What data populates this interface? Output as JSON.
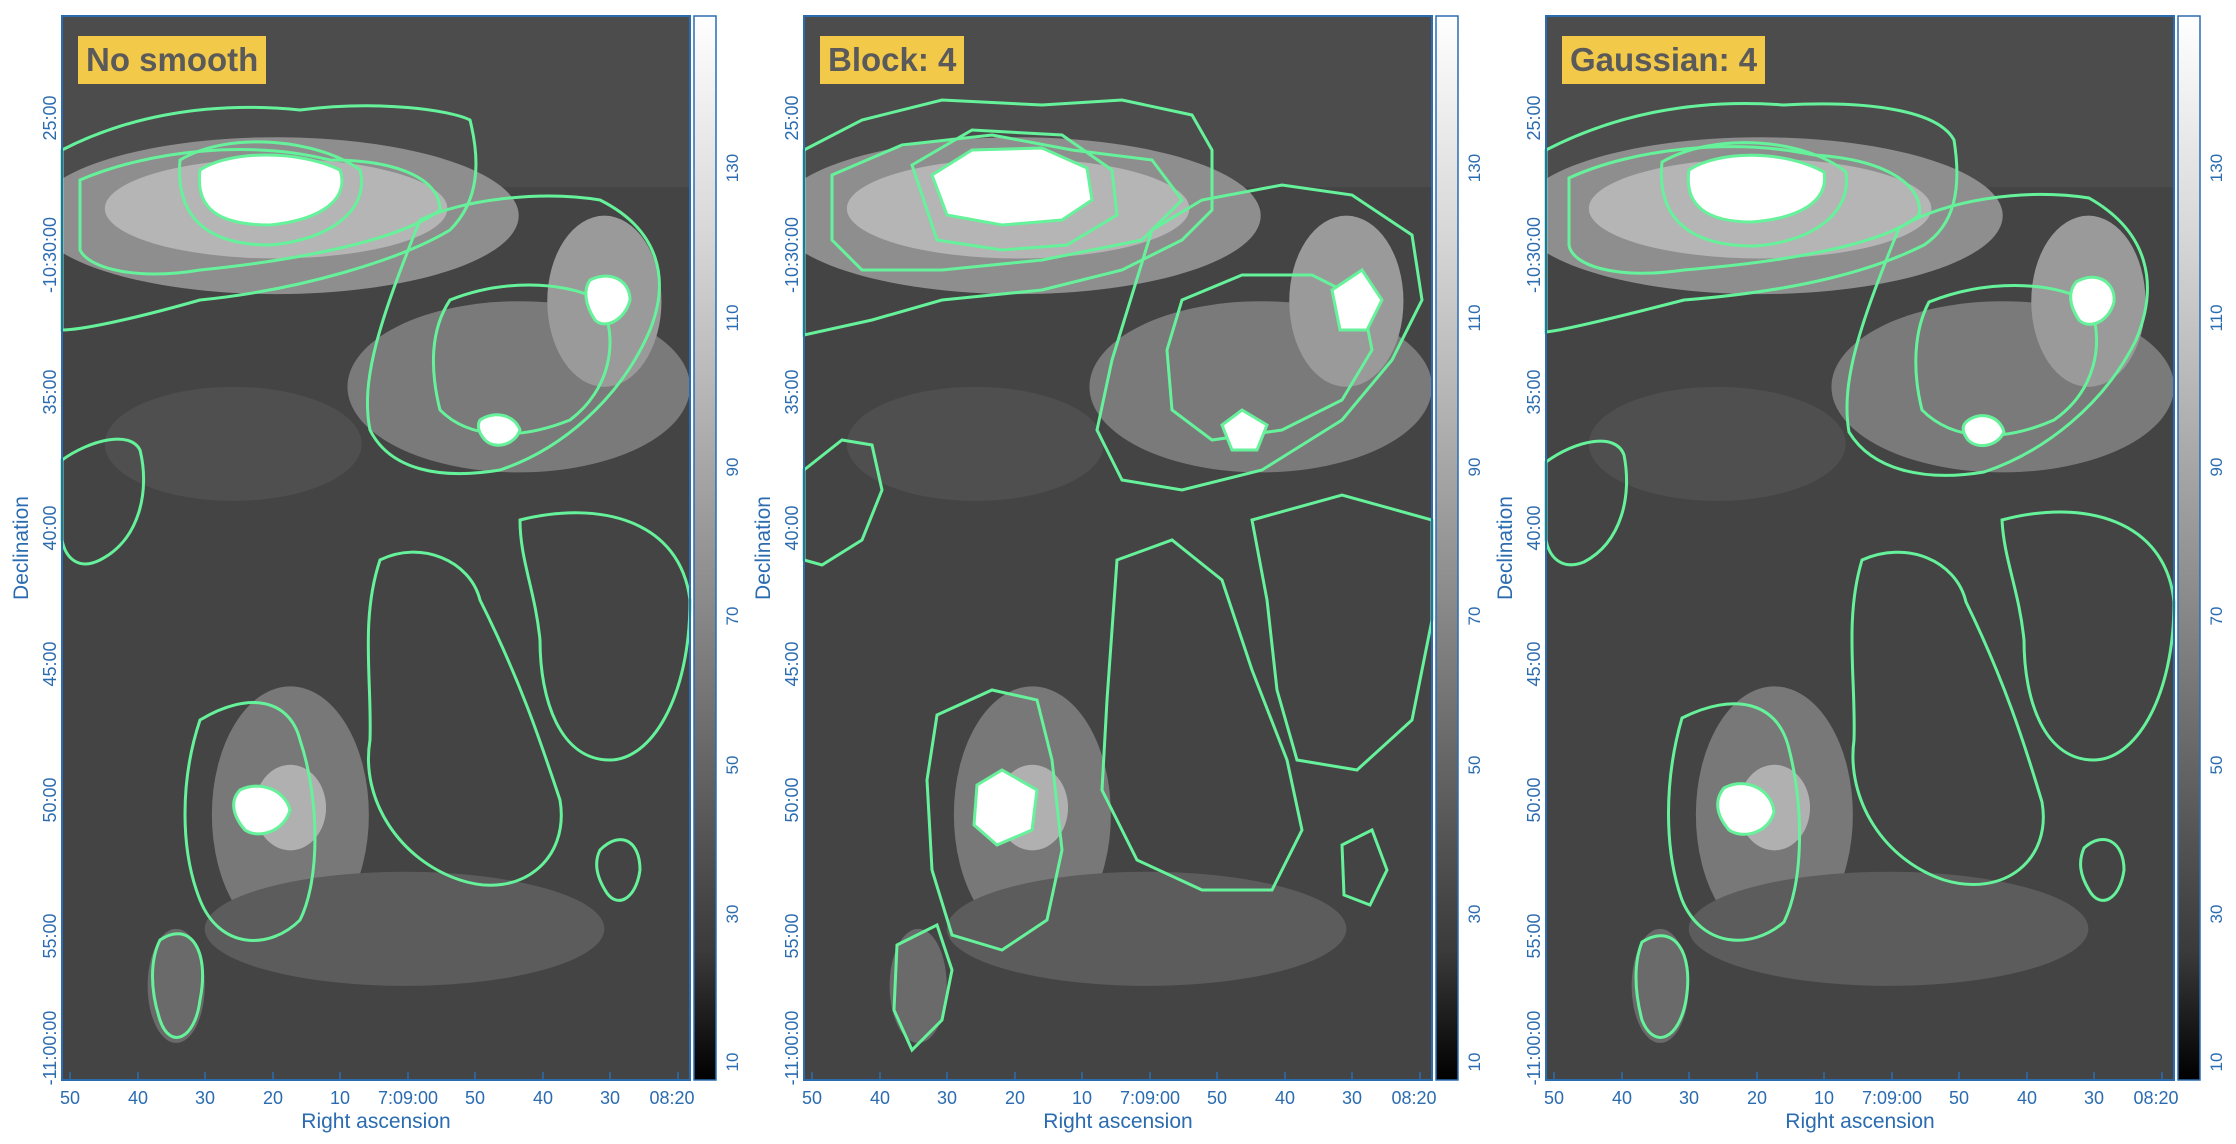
{
  "colors": {
    "axis": "#2b6cb0",
    "contour": "#66f29a",
    "label_bg": "#f3c94a",
    "label_text": "#5a5a5a"
  },
  "axes": {
    "x_title": "Right ascension",
    "y_title": "Declination",
    "x_ticks": [
      "50",
      "40",
      "30",
      "20",
      "10",
      "7:09:00",
      "50",
      "40",
      "30",
      "08:20"
    ],
    "y_ticks": [
      "25:00",
      "-10:30:00",
      "35:00",
      "40:00",
      "45:00",
      "50:00",
      "55:00",
      "-11:00:00"
    ],
    "colorbar_ticks": [
      "10",
      "30",
      "50",
      "70",
      "90",
      "110",
      "130"
    ]
  },
  "panels": [
    {
      "id": "no-smooth",
      "label": "No smooth"
    },
    {
      "id": "block-4",
      "label": "Block: 4"
    },
    {
      "id": "gaussian-4",
      "label": "Gaussian: 4"
    }
  ]
}
